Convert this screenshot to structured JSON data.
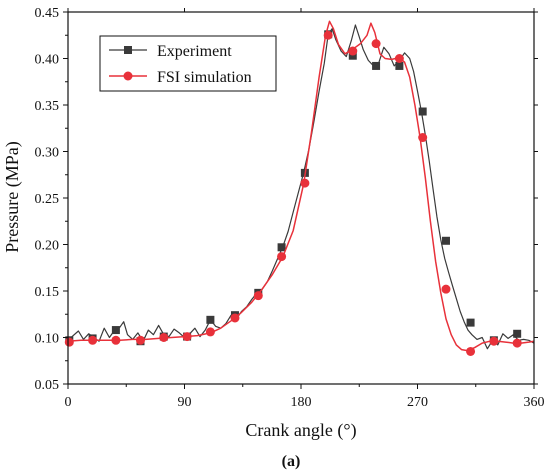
{
  "colors": {
    "experiment": "#3a3a3a",
    "simulation": "#e8313a",
    "axis": "#111111"
  },
  "caption": "(a)",
  "chart_data": {
    "type": "line",
    "xlabel": "Crank angle (°)",
    "ylabel": "Pressure (MPa)",
    "xlim": [
      0,
      360
    ],
    "ylim": [
      0.05,
      0.45
    ],
    "x_ticks": [
      0,
      90,
      180,
      270,
      360
    ],
    "x_tick_labels": [
      "0",
      "90",
      "180",
      "270",
      "360"
    ],
    "y_ticks": [
      0.05,
      0.1,
      0.15,
      0.2,
      0.25,
      0.3,
      0.35,
      0.4,
      0.45
    ],
    "y_tick_labels": [
      "0.05",
      "0.10",
      "0.15",
      "0.20",
      "0.25",
      "0.30",
      "0.35",
      "0.40",
      "0.45"
    ],
    "grid": false,
    "legend_position": "top-left",
    "series": [
      {
        "name": "Experiment",
        "marker": "square",
        "color": "#3a3a3a",
        "line": [
          [
            0,
            0.097
          ],
          [
            4,
            0.102
          ],
          [
            8,
            0.107
          ],
          [
            12,
            0.098
          ],
          [
            16,
            0.104
          ],
          [
            20,
            0.1
          ],
          [
            24,
            0.096
          ],
          [
            28,
            0.11
          ],
          [
            32,
            0.1
          ],
          [
            36,
            0.108
          ],
          [
            40,
            0.111
          ],
          [
            43,
            0.117
          ],
          [
            46,
            0.103
          ],
          [
            50,
            0.098
          ],
          [
            54,
            0.105
          ],
          [
            58,
            0.096
          ],
          [
            62,
            0.108
          ],
          [
            66,
            0.103
          ],
          [
            70,
            0.113
          ],
          [
            74,
            0.103
          ],
          [
            78,
            0.101
          ],
          [
            82,
            0.109
          ],
          [
            86,
            0.105
          ],
          [
            90,
            0.1
          ],
          [
            94,
            0.104
          ],
          [
            98,
            0.11
          ],
          [
            102,
            0.101
          ],
          [
            106,
            0.108
          ],
          [
            110,
            0.119
          ],
          [
            114,
            0.112
          ],
          [
            118,
            0.11
          ],
          [
            122,
            0.115
          ],
          [
            126,
            0.124
          ],
          [
            130,
            0.12
          ],
          [
            134,
            0.128
          ],
          [
            138,
            0.133
          ],
          [
            142,
            0.141
          ],
          [
            146,
            0.148
          ],
          [
            150,
            0.152
          ],
          [
            154,
            0.16
          ],
          [
            158,
            0.172
          ],
          [
            162,
            0.185
          ],
          [
            166,
            0.198
          ],
          [
            170,
            0.214
          ],
          [
            174,
            0.235
          ],
          [
            178,
            0.256
          ],
          [
            182,
            0.277
          ],
          [
            186,
            0.302
          ],
          [
            190,
            0.332
          ],
          [
            194,
            0.365
          ],
          [
            198,
            0.395
          ],
          [
            201,
            0.426
          ],
          [
            204,
            0.432
          ],
          [
            207,
            0.42
          ],
          [
            211,
            0.408
          ],
          [
            215,
            0.402
          ],
          [
            219,
            0.42
          ],
          [
            222,
            0.436
          ],
          [
            225,
            0.423
          ],
          [
            228,
            0.41
          ],
          [
            232,
            0.398
          ],
          [
            236,
            0.392
          ],
          [
            240,
            0.395
          ],
          [
            244,
            0.412
          ],
          [
            248,
            0.405
          ],
          [
            252,
            0.392
          ],
          [
            256,
            0.398
          ],
          [
            260,
            0.406
          ],
          [
            264,
            0.4
          ],
          [
            267,
            0.386
          ],
          [
            270,
            0.365
          ],
          [
            273,
            0.343
          ],
          [
            276,
            0.318
          ],
          [
            279,
            0.29
          ],
          [
            282,
            0.26
          ],
          [
            285,
            0.23
          ],
          [
            288,
            0.205
          ],
          [
            291,
            0.185
          ],
          [
            294,
            0.17
          ],
          [
            297,
            0.156
          ],
          [
            300,
            0.142
          ],
          [
            303,
            0.128
          ],
          [
            306,
            0.117
          ],
          [
            309,
            0.108
          ],
          [
            312,
            0.103
          ],
          [
            316,
            0.098
          ],
          [
            320,
            0.1
          ],
          [
            324,
            0.088
          ],
          [
            328,
            0.097
          ],
          [
            332,
            0.092
          ],
          [
            336,
            0.104
          ],
          [
            340,
            0.099
          ],
          [
            344,
            0.103
          ],
          [
            348,
            0.097
          ],
          [
            352,
            0.098
          ],
          [
            356,
            0.097
          ],
          [
            360,
            0.094
          ]
        ],
        "markers": [
          [
            1,
            0.097
          ],
          [
            19,
            0.099
          ],
          [
            37,
            0.108
          ],
          [
            56,
            0.096
          ],
          [
            74,
            0.101
          ],
          [
            92,
            0.101
          ],
          [
            110,
            0.119
          ],
          [
            129,
            0.124
          ],
          [
            147,
            0.148
          ],
          [
            165,
            0.197
          ],
          [
            183,
            0.277
          ],
          [
            201,
            0.426
          ],
          [
            220,
            0.403
          ],
          [
            238,
            0.392
          ],
          [
            256,
            0.392
          ],
          [
            274,
            0.343
          ],
          [
            292,
            0.204
          ],
          [
            311,
            0.116
          ],
          [
            329,
            0.097
          ],
          [
            347,
            0.104
          ]
        ]
      },
      {
        "name": "FSI simulation",
        "marker": "circle",
        "color": "#e8313a",
        "line": [
          [
            0,
            0.096
          ],
          [
            10,
            0.097
          ],
          [
            20,
            0.097
          ],
          [
            30,
            0.097
          ],
          [
            40,
            0.097
          ],
          [
            50,
            0.098
          ],
          [
            60,
            0.098
          ],
          [
            70,
            0.099
          ],
          [
            80,
            0.1
          ],
          [
            90,
            0.101
          ],
          [
            100,
            0.102
          ],
          [
            110,
            0.105
          ],
          [
            118,
            0.11
          ],
          [
            126,
            0.118
          ],
          [
            134,
            0.127
          ],
          [
            142,
            0.138
          ],
          [
            150,
            0.152
          ],
          [
            158,
            0.168
          ],
          [
            166,
            0.187
          ],
          [
            174,
            0.215
          ],
          [
            182,
            0.265
          ],
          [
            188,
            0.32
          ],
          [
            194,
            0.38
          ],
          [
            199,
            0.425
          ],
          [
            202,
            0.44
          ],
          [
            205,
            0.432
          ],
          [
            209,
            0.415
          ],
          [
            214,
            0.405
          ],
          [
            220,
            0.41
          ],
          [
            226,
            0.416
          ],
          [
            231,
            0.425
          ],
          [
            234,
            0.438
          ],
          [
            237,
            0.428
          ],
          [
            241,
            0.405
          ],
          [
            245,
            0.4
          ],
          [
            250,
            0.399
          ],
          [
            256,
            0.401
          ],
          [
            260,
            0.396
          ],
          [
            264,
            0.38
          ],
          [
            268,
            0.35
          ],
          [
            272,
            0.315
          ],
          [
            276,
            0.272
          ],
          [
            280,
            0.225
          ],
          [
            284,
            0.182
          ],
          [
            288,
            0.148
          ],
          [
            292,
            0.12
          ],
          [
            296,
            0.103
          ],
          [
            300,
            0.092
          ],
          [
            304,
            0.087
          ],
          [
            308,
            0.086
          ],
          [
            314,
            0.089
          ],
          [
            320,
            0.094
          ],
          [
            326,
            0.096
          ],
          [
            332,
            0.096
          ],
          [
            338,
            0.095
          ],
          [
            344,
            0.094
          ],
          [
            350,
            0.094
          ],
          [
            356,
            0.095
          ],
          [
            360,
            0.096
          ]
        ],
        "markers": [
          [
            1,
            0.095
          ],
          [
            19,
            0.097
          ],
          [
            37,
            0.097
          ],
          [
            56,
            0.097
          ],
          [
            74,
            0.1
          ],
          [
            92,
            0.101
          ],
          [
            110,
            0.106
          ],
          [
            129,
            0.121
          ],
          [
            147,
            0.145
          ],
          [
            165,
            0.187
          ],
          [
            183,
            0.266
          ],
          [
            201,
            0.425
          ],
          [
            220,
            0.408
          ],
          [
            238,
            0.416
          ],
          [
            256,
            0.4
          ],
          [
            274,
            0.315
          ],
          [
            292,
            0.152
          ],
          [
            311,
            0.085
          ],
          [
            329,
            0.096
          ],
          [
            347,
            0.094
          ]
        ]
      }
    ]
  }
}
